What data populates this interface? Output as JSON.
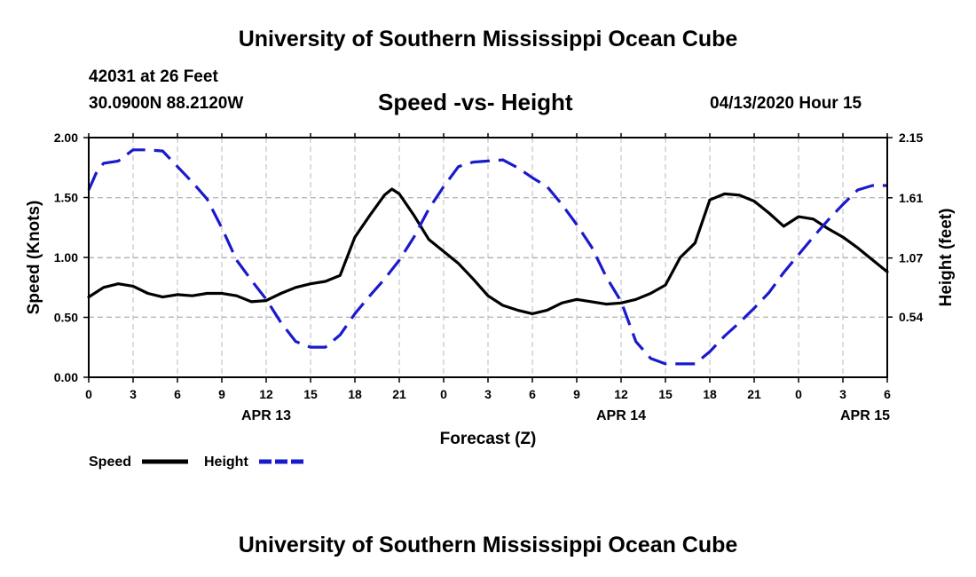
{
  "page": {
    "title": "University of Southern Mississippi Ocean Cube",
    "footer_title": "University of Southern Mississippi Ocean Cube",
    "station": "42031 at 26 Feet",
    "coordinates": "30.0900N 88.2120W",
    "datetime": "04/13/2020 Hour 15"
  },
  "chart_data": {
    "type": "line",
    "title": "Speed -vs- Height",
    "xlabel": "Forecast (Z)",
    "ylabel": "Speed (Knots)",
    "y2label": "Height (feet)",
    "x_unit": "hours from 2020-04-13 00Z",
    "xlim": [
      0,
      54
    ],
    "ylim": [
      0,
      2.0
    ],
    "y2lim": [
      0,
      2.15
    ],
    "x_ticks": [
      0,
      3,
      6,
      9,
      12,
      15,
      18,
      21,
      24,
      27,
      30,
      33,
      36,
      39,
      42,
      45,
      48,
      51,
      54
    ],
    "x_tick_labels": [
      "0",
      "3",
      "6",
      "9",
      "12",
      "15",
      "18",
      "21",
      "0",
      "3",
      "6",
      "9",
      "12",
      "15",
      "18",
      "21",
      "0",
      "3",
      "6"
    ],
    "date_labels": [
      {
        "x": 12,
        "label": "APR 13"
      },
      {
        "x": 36,
        "label": "APR 14"
      },
      {
        "x": 52.5,
        "label": "APR 15"
      }
    ],
    "y_ticks": [
      0,
      0.5,
      1.0,
      1.5,
      2.0
    ],
    "y_tick_labels": [
      "0.00",
      "0.50",
      "1.00",
      "1.50",
      "2.00"
    ],
    "y2_ticks": [
      0.54,
      1.07,
      1.61,
      2.15
    ],
    "y2_tick_labels": [
      "0.54",
      "1.07",
      "1.61",
      "2.15"
    ],
    "grid": true,
    "series": [
      {
        "name": "Speed",
        "axis": "left",
        "color": "#000000",
        "dash": "solid",
        "x": [
          0,
          1,
          2,
          3,
          4,
          5,
          6,
          7,
          8,
          9,
          10,
          11,
          12,
          13,
          14,
          15,
          16,
          17,
          18,
          19,
          20,
          20.5,
          21,
          22,
          23,
          24,
          25,
          26,
          27,
          28,
          29,
          30,
          31,
          32,
          33,
          34,
          35,
          36,
          37,
          38,
          39,
          40,
          41,
          42,
          43,
          44,
          45,
          46,
          47,
          48,
          49,
          50,
          51,
          52,
          53,
          54
        ],
        "values": [
          0.67,
          0.75,
          0.78,
          0.76,
          0.7,
          0.67,
          0.69,
          0.68,
          0.7,
          0.7,
          0.68,
          0.63,
          0.64,
          0.7,
          0.75,
          0.78,
          0.8,
          0.85,
          1.17,
          1.35,
          1.52,
          1.57,
          1.53,
          1.35,
          1.15,
          1.05,
          0.95,
          0.82,
          0.68,
          0.6,
          0.56,
          0.53,
          0.56,
          0.62,
          0.65,
          0.63,
          0.61,
          0.62,
          0.65,
          0.7,
          0.77,
          1.0,
          1.12,
          1.48,
          1.53,
          1.52,
          1.47,
          1.37,
          1.26,
          1.34,
          1.32,
          1.24,
          1.17,
          1.08,
          0.98,
          0.88
        ]
      },
      {
        "name": "Height",
        "axis": "right",
        "color": "#1a1acc",
        "dash": "dashed",
        "x": [
          0,
          0.5,
          1,
          2,
          3,
          4,
          5,
          6,
          7,
          8,
          9,
          10,
          11,
          12,
          13,
          14,
          15,
          16,
          17,
          18,
          19,
          20,
          21,
          22,
          23,
          24,
          25,
          26,
          27,
          28,
          29,
          30,
          31,
          32,
          33,
          34,
          35,
          36,
          37,
          38,
          39,
          40,
          41,
          42,
          43,
          44,
          45,
          46,
          47,
          48,
          49,
          50,
          51,
          52,
          53,
          54
        ],
        "values": [
          1.68,
          1.83,
          1.92,
          1.94,
          2.04,
          2.04,
          2.03,
          1.89,
          1.75,
          1.6,
          1.34,
          1.05,
          0.87,
          0.7,
          0.49,
          0.32,
          0.27,
          0.27,
          0.38,
          0.57,
          0.73,
          0.88,
          1.05,
          1.26,
          1.51,
          1.71,
          1.89,
          1.93,
          1.94,
          1.95,
          1.88,
          1.79,
          1.71,
          1.55,
          1.37,
          1.17,
          0.9,
          0.68,
          0.32,
          0.17,
          0.12,
          0.12,
          0.12,
          0.23,
          0.37,
          0.49,
          0.62,
          0.76,
          0.94,
          1.1,
          1.26,
          1.41,
          1.55,
          1.68,
          1.72,
          1.72
        ]
      }
    ],
    "legend": [
      {
        "label": "Speed",
        "color": "#000000",
        "dash": "solid"
      },
      {
        "label": "Height",
        "color": "#1a1acc",
        "dash": "dashed"
      }
    ],
    "legend_position": "bottom-left"
  }
}
